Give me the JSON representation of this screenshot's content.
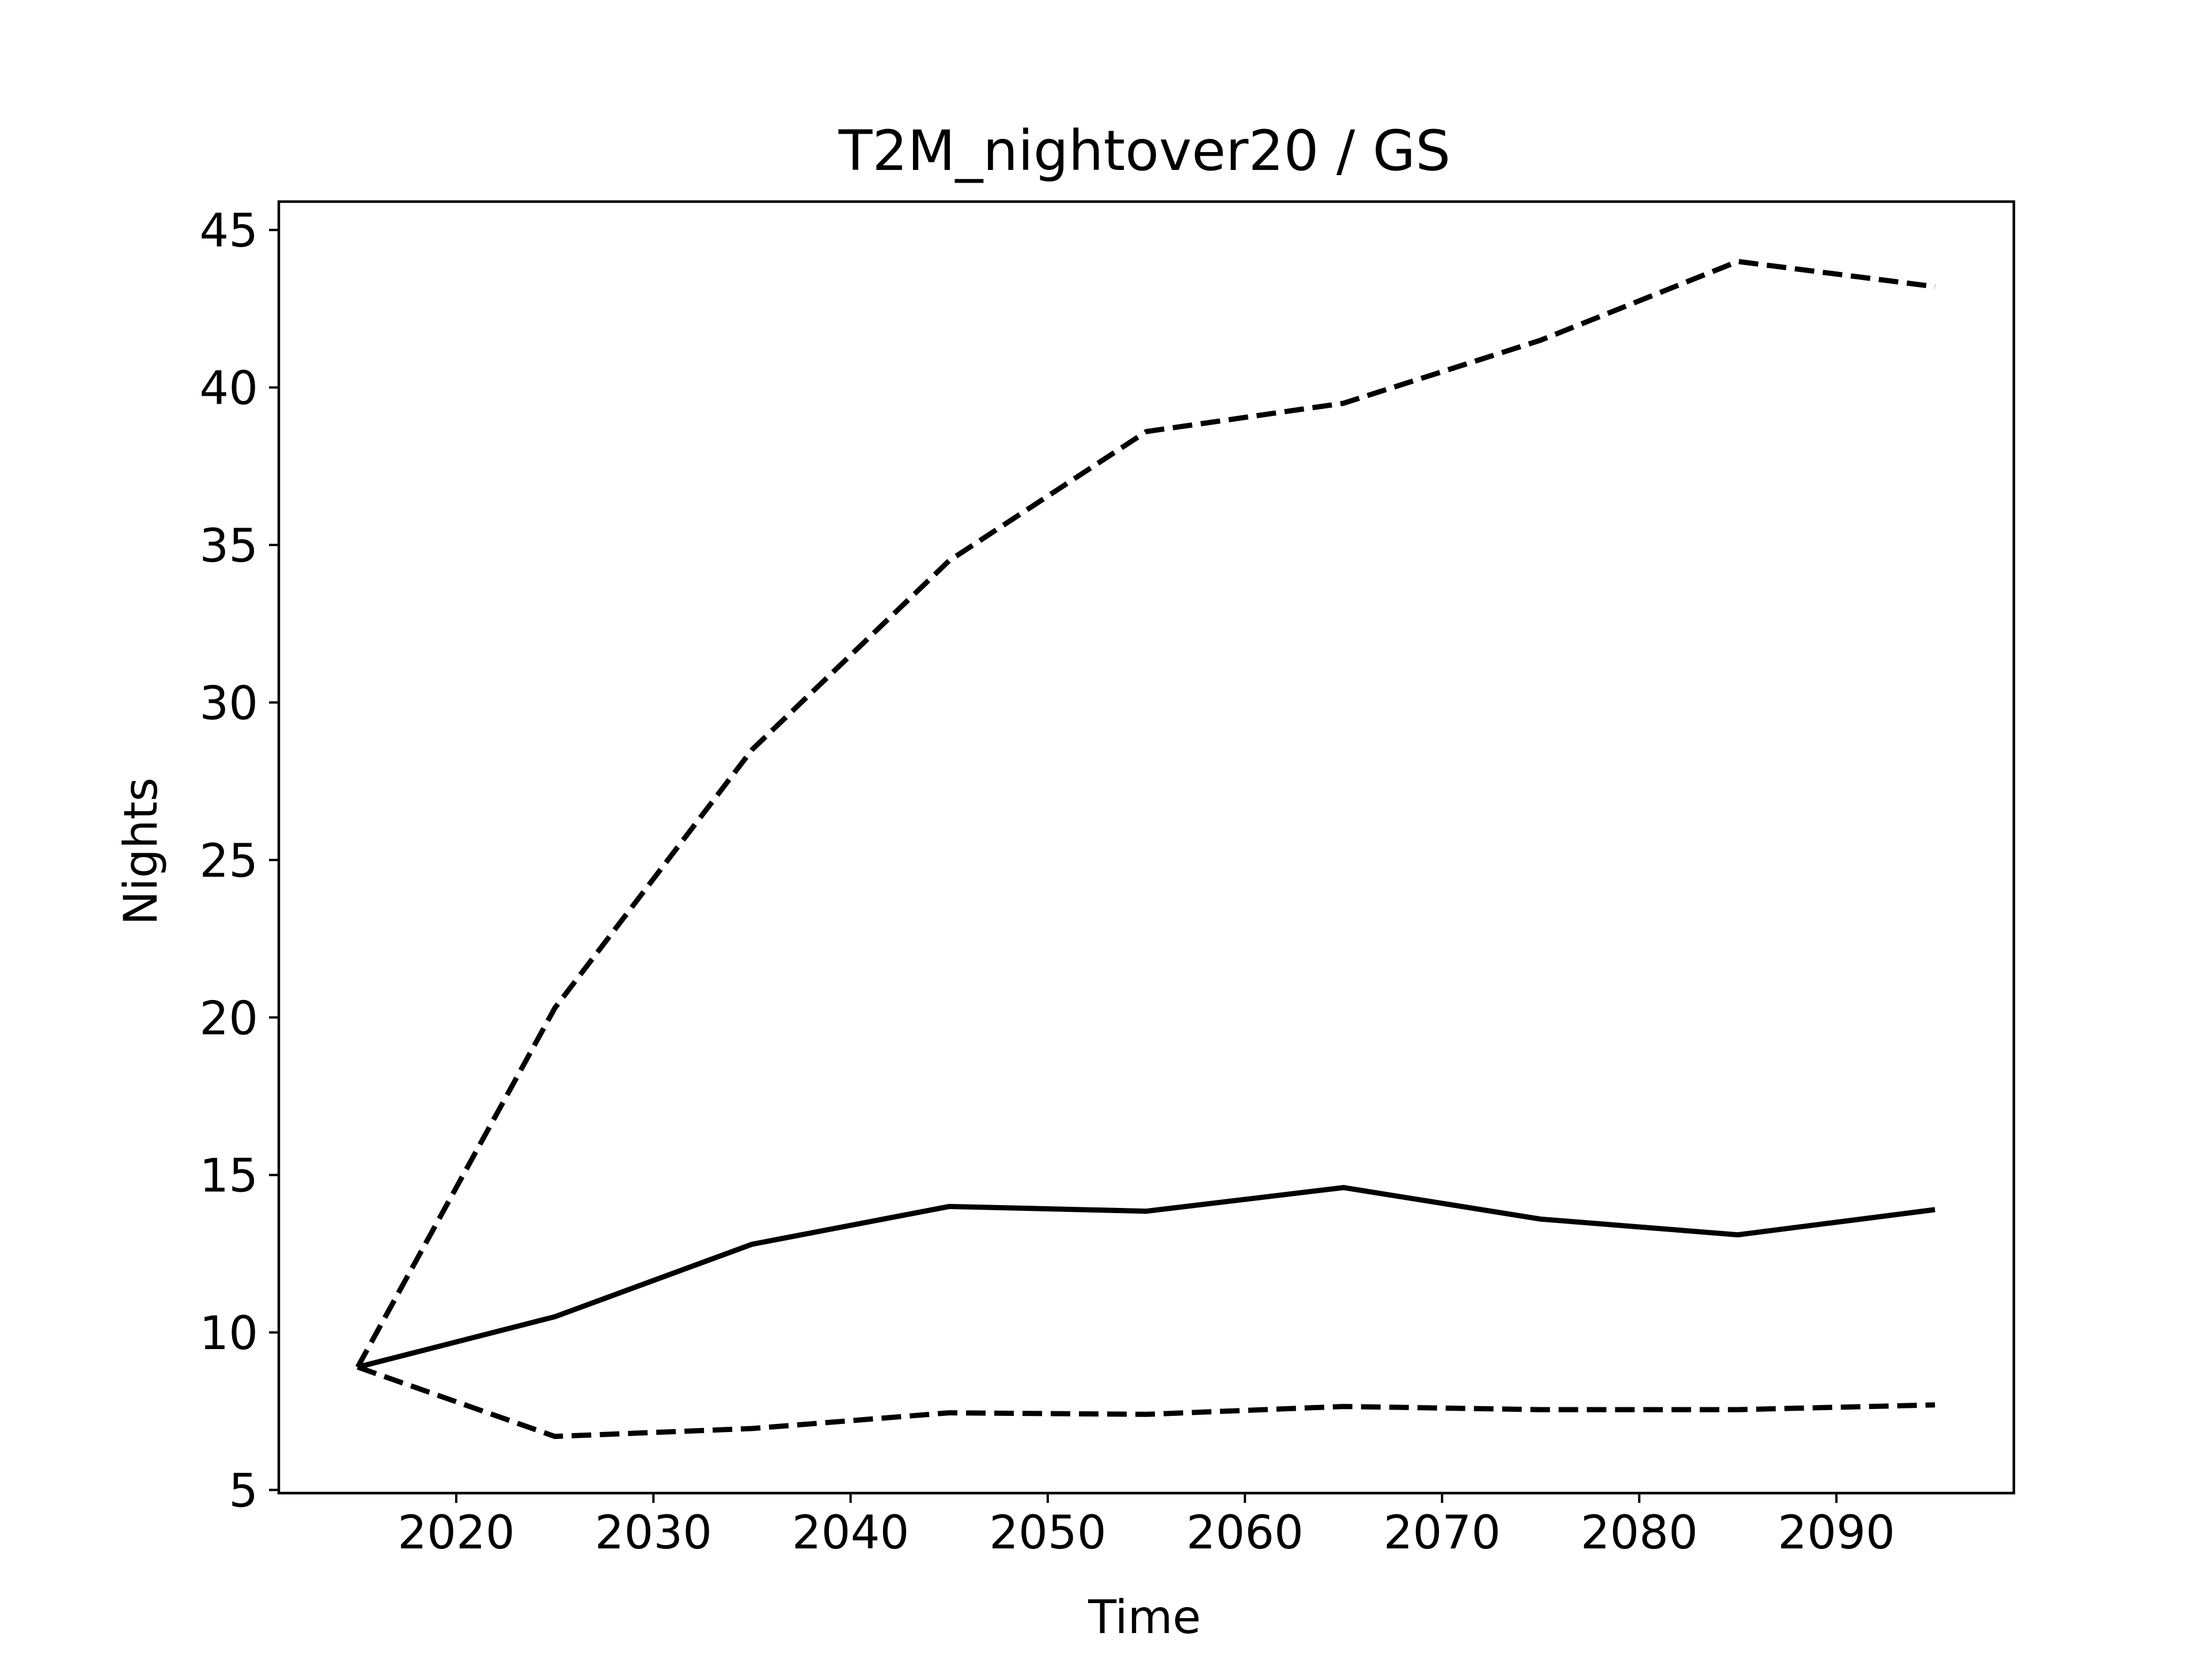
{
  "chart_data": {
    "type": "line",
    "title": "T2M_nightover20 / GS",
    "xlabel": "Time",
    "ylabel": "Nights",
    "xlim": [
      2011,
      2099
    ],
    "ylim": [
      4.9,
      45.9
    ],
    "xticks": [
      2020,
      2030,
      2040,
      2050,
      2060,
      2070,
      2080,
      2090
    ],
    "yticks": [
      5,
      10,
      15,
      20,
      25,
      30,
      35,
      40,
      45
    ],
    "grid": false,
    "x": [
      2015,
      2025,
      2035,
      2045,
      2055,
      2065,
      2075,
      2085,
      2095
    ],
    "series": [
      {
        "style": "dashed",
        "color": "#000000",
        "values": [
          8.9,
          20.3,
          28.5,
          34.5,
          38.6,
          39.5,
          41.5,
          44.0,
          43.2
        ]
      },
      {
        "style": "solid",
        "color": "#000000",
        "values": [
          8.9,
          10.5,
          12.8,
          14.0,
          13.85,
          14.6,
          13.6,
          13.1,
          13.9
        ]
      },
      {
        "style": "dashed",
        "color": "#000000",
        "values": [
          8.9,
          6.7,
          6.95,
          7.45,
          7.4,
          7.65,
          7.55,
          7.55,
          7.7
        ]
      }
    ]
  }
}
